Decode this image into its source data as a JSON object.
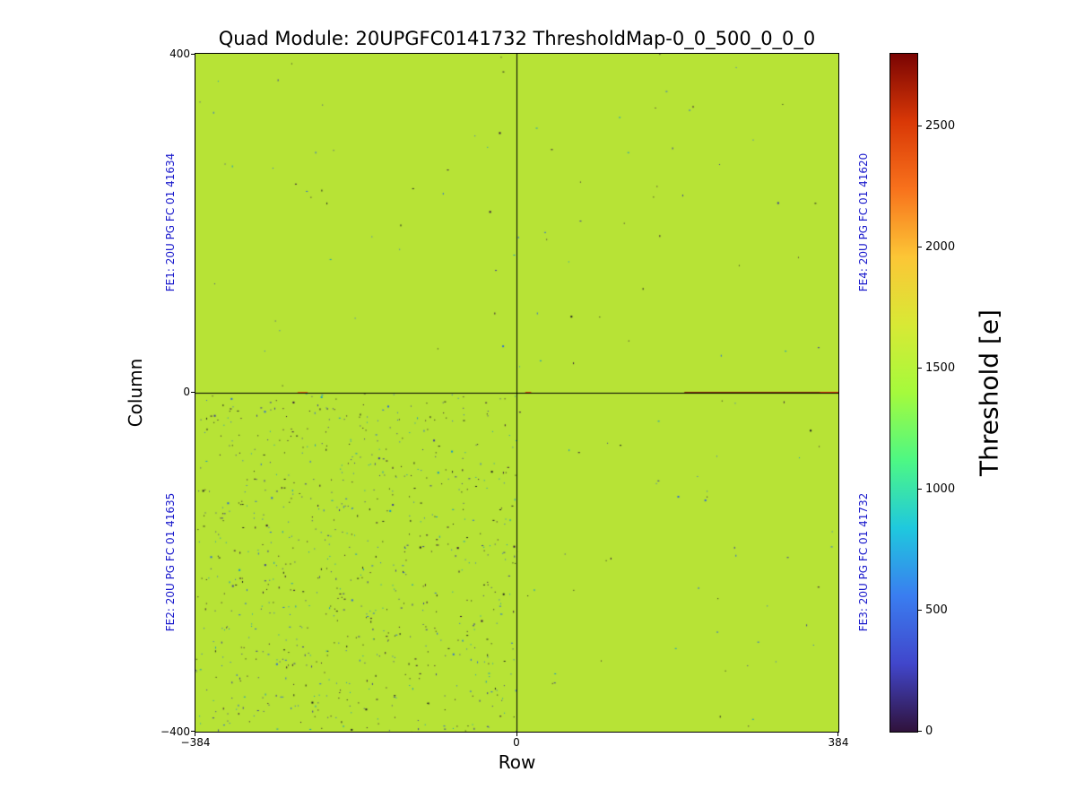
{
  "chart_data": {
    "type": "heatmap",
    "title": "Quad Module: 20UPGFC0141732 ThresholdMap-0_0_500_0_0_0",
    "xlabel": "Row",
    "ylabel": "Column",
    "xlim": [
      -384,
      384
    ],
    "ylim": [
      -400,
      400
    ],
    "x_ticks": [
      -384,
      0,
      384
    ],
    "y_ticks": [
      -400,
      0,
      400
    ],
    "x_tick_labels": [
      "−384",
      "0",
      "384"
    ],
    "y_tick_labels": [
      "400",
      "0",
      "−400"
    ],
    "grid": false,
    "frontend_labels": [
      {
        "id": "FE1",
        "label": "FE1: 20U PG FC 01 41634",
        "side": "left",
        "quadrant": "top-left"
      },
      {
        "id": "FE2",
        "label": "FE2: 20U PG FC 01 41635",
        "side": "left",
        "quadrant": "bottom-left"
      },
      {
        "id": "FE3",
        "label": "FE3: 20U PG FC 01 41732",
        "side": "right",
        "quadrant": "bottom-right"
      },
      {
        "id": "FE4",
        "label": "FE4: 20U PG FC 01 41620",
        "side": "right",
        "quadrant": "top-right"
      }
    ],
    "frontend_label_color": "#1a1acc",
    "colorbar": {
      "label": "Threshold [e]",
      "vmin": 0,
      "vmax": 2800,
      "ticks": [
        0,
        500,
        1000,
        1500,
        2000,
        2500
      ],
      "colormap": "turbo",
      "gradient_stops_bottom_to_top": [
        "#30123b",
        "#4146cb",
        "#3a7df0",
        "#1fc8de",
        "#4df884",
        "#a5fa3c",
        "#d8e935",
        "#fcc636",
        "#f8721c",
        "#d93806",
        "#7a0403"
      ]
    },
    "heatmap": {
      "typical_threshold_e": 1500,
      "background_color": "#b7e336",
      "divider_line_color": "#000000",
      "speck_colors": [
        "#30123b",
        "#3b3f94",
        "#2f6dd0",
        "#1799c0",
        "#222222"
      ],
      "speck_counts": {
        "FE1": 40,
        "FE2": 850,
        "FE3": 50,
        "FE4": 40
      },
      "center_line_hot_segments": [
        {
          "row_start": -262,
          "row_end": -250,
          "color": "#e06a10"
        },
        {
          "row_start": 10,
          "row_end": 17,
          "color": "#d84a08"
        },
        {
          "row_start": 200,
          "row_end": 384,
          "color": "#8a2c05"
        },
        {
          "row_start": 362,
          "row_end": 384,
          "color": "#d43005"
        }
      ]
    }
  }
}
